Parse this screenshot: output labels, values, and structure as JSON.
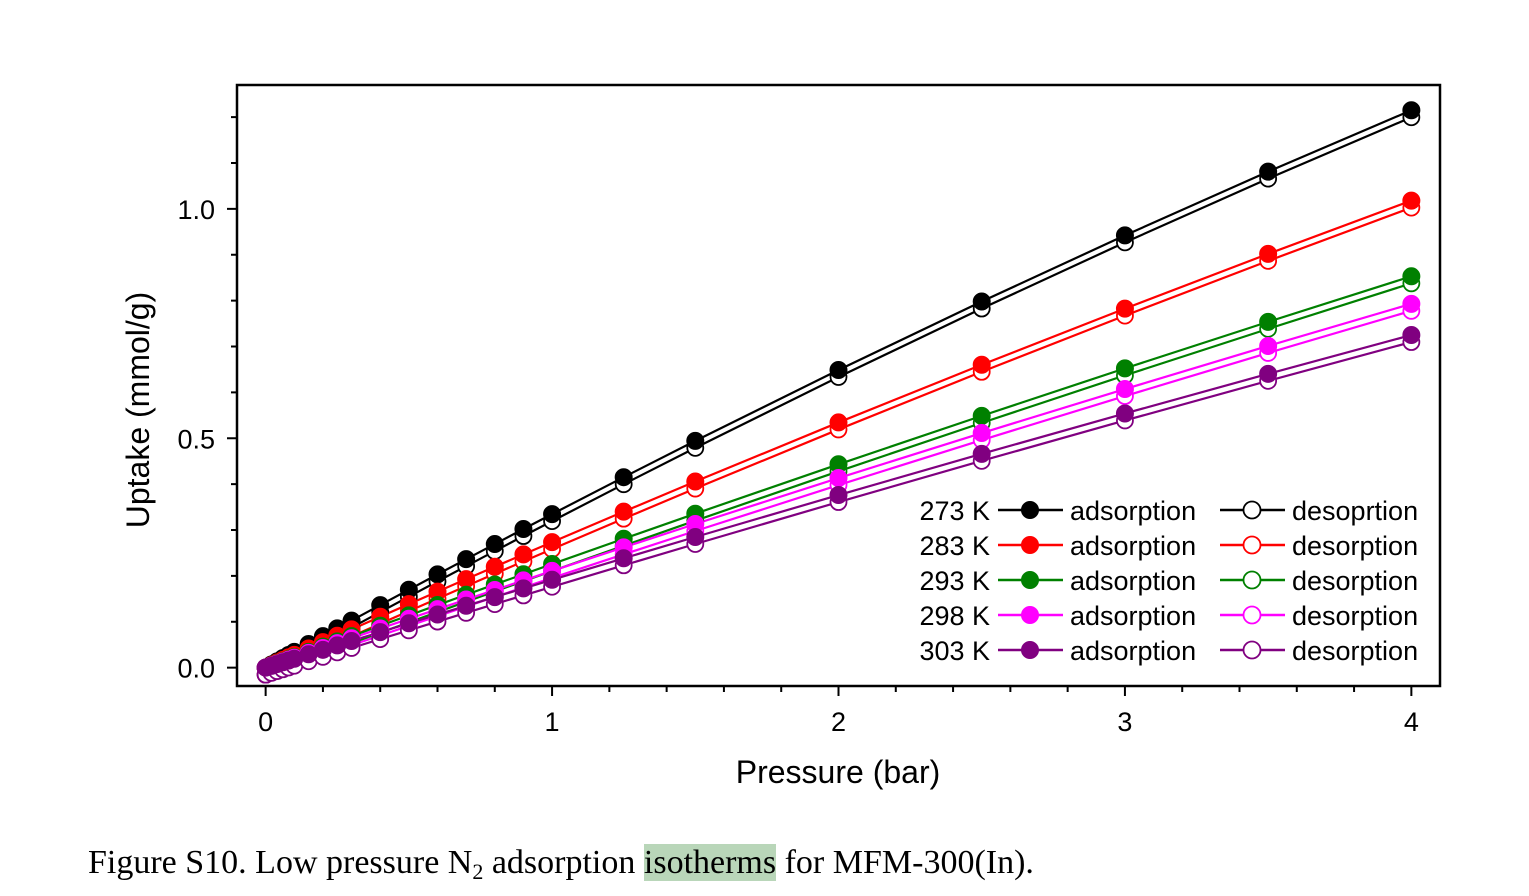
{
  "chart_data": {
    "type": "line",
    "xlabel": "Pressure (bar)",
    "ylabel": "Uptake (mmol/g)",
    "xlim": [
      -0.1,
      4.1
    ],
    "ylim": [
      -0.04,
      1.27
    ],
    "x_ticks": [
      0,
      1,
      2,
      3,
      4
    ],
    "x_tick_labels": [
      "0",
      "1",
      "2",
      "3",
      "4"
    ],
    "y_ticks": [
      0.0,
      0.5,
      1.0
    ],
    "y_tick_labels": [
      "0.0",
      "0.5",
      "1.0"
    ],
    "legend_position": "bottom-right",
    "x": [
      0,
      0.02,
      0.04,
      0.06,
      0.08,
      0.1,
      0.15,
      0.2,
      0.25,
      0.3,
      0.4,
      0.5,
      0.6,
      0.7,
      0.8,
      0.9,
      1.0,
      1.25,
      1.5,
      2.0,
      2.5,
      3.0,
      3.5,
      4.0
    ],
    "series": [
      {
        "temperature": "273 K",
        "color": "#000000",
        "slope": 0.345,
        "uptake_at_4bar": 1.215
      },
      {
        "temperature": "283 K",
        "color": "#ff0000",
        "slope": 0.28,
        "uptake_at_4bar": 1.018
      },
      {
        "temperature": "293 K",
        "color": "#008000",
        "slope": 0.23,
        "uptake_at_4bar": 0.853
      },
      {
        "temperature": "298 K",
        "color": "#ff00ff",
        "slope": 0.215,
        "uptake_at_4bar": 0.793
      },
      {
        "temperature": "303 K",
        "color": "#800080",
        "slope": 0.195,
        "uptake_at_4bar": 0.725
      }
    ],
    "legend": [
      {
        "temp": "273 K",
        "ads": "adsorption",
        "des": "desoprtion"
      },
      {
        "temp": "283 K",
        "ads": "adsorption",
        "des": "desorption"
      },
      {
        "temp": "293 K",
        "ads": "adsorption",
        "des": "desorption"
      },
      {
        "temp": "298 K",
        "ads": "adsorption",
        "des": "desorption"
      },
      {
        "temp": "303 K",
        "ads": "adsorption",
        "des": "desorption"
      }
    ]
  },
  "caption": {
    "prefix": "Figure S10. Low pressure N",
    "subscript": "2",
    "middle": " adsorption ",
    "highlight": "isotherms",
    "suffix": " for MFM-300(In)."
  }
}
